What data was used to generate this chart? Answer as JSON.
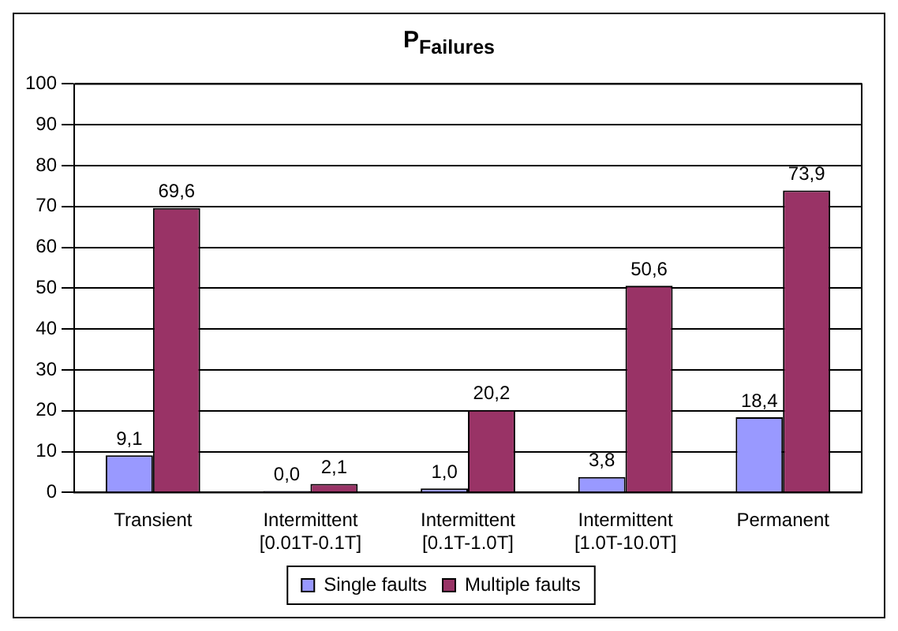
{
  "chart_data": {
    "type": "bar",
    "title": "P$_{Failures}$",
    "categories": [
      "Transient",
      "Intermittent [0.01T-0.1T]",
      "Intermittent [0.1T-1.0T]",
      "Intermittent [1.0T-10.0T]",
      "Permanent"
    ],
    "series": [
      {
        "name": "Single faults",
        "color": "#9999ff",
        "values": [
          9.1,
          0.0,
          1.0,
          3.8,
          18.4
        ],
        "value_labels": [
          "9,1",
          "0,0",
          "1,0",
          "3,8",
          "18,4"
        ]
      },
      {
        "name": "Multiple faults",
        "color": "#993366",
        "values": [
          69.6,
          2.1,
          20.2,
          50.6,
          73.9
        ],
        "value_labels": [
          "69,6",
          "2,1",
          "20,2",
          "50,6",
          "73,9"
        ]
      }
    ],
    "ylim": [
      0,
      100
    ],
    "yticks": [
      0,
      10,
      20,
      30,
      40,
      50,
      60,
      70,
      80,
      90,
      100
    ],
    "grid": "y",
    "legend": "bottom"
  }
}
